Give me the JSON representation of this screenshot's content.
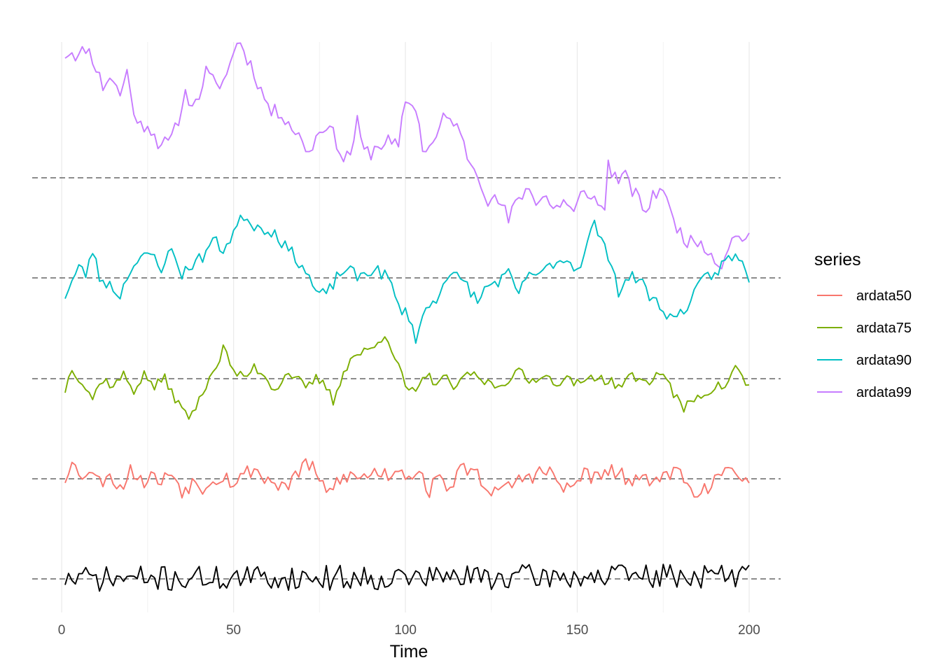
{
  "chart_data": {
    "type": "line",
    "title": "",
    "xlabel": "Time",
    "ylabel": "",
    "xlim": [
      1,
      200
    ],
    "x_ticks": [
      0,
      50,
      100,
      150,
      200
    ],
    "x_tick_labels": [
      "0",
      "50",
      "100",
      "150",
      "200"
    ],
    "grid": "vertical only",
    "legend": {
      "title": "series",
      "placement": "right",
      "entries": [
        "ardata50",
        "ardata75",
        "ardata90",
        "ardata99"
      ]
    },
    "baseline_style": "dashed grey",
    "series": [
      {
        "name": "ardata99",
        "color": "#C77CFF",
        "baseline": 0,
        "anchors": [
          [
            1,
            3.4
          ],
          [
            3,
            3.5
          ],
          [
            5,
            3.3
          ],
          [
            7,
            3.6
          ],
          [
            9,
            3.3
          ],
          [
            12,
            2.5
          ],
          [
            14,
            2.8
          ],
          [
            17,
            2.3
          ],
          [
            19,
            2.9
          ],
          [
            22,
            1.4
          ],
          [
            25,
            1.5
          ],
          [
            28,
            1.0
          ],
          [
            31,
            0.9
          ],
          [
            33,
            1.3
          ],
          [
            36,
            2.3
          ],
          [
            39,
            2.0
          ],
          [
            42,
            2.9
          ],
          [
            45,
            2.5
          ],
          [
            48,
            2.8
          ],
          [
            51,
            3.8
          ],
          [
            53,
            3.5
          ],
          [
            56,
            2.9
          ],
          [
            58,
            2.4
          ],
          [
            61,
            1.8
          ],
          [
            64,
            1.8
          ],
          [
            67,
            1.4
          ],
          [
            70,
            1.0
          ],
          [
            72,
            0.7
          ],
          [
            75,
            1.3
          ],
          [
            77,
            1.5
          ],
          [
            80,
            1.0
          ],
          [
            82,
            0.5
          ],
          [
            84,
            0.7
          ],
          [
            86,
            1.5
          ],
          [
            88,
            0.7
          ],
          [
            90,
            0.7
          ],
          [
            92,
            0.9
          ],
          [
            95,
            1.0
          ],
          [
            98,
            0.8
          ],
          [
            100,
            2.2
          ],
          [
            101,
            2.0
          ],
          [
            103,
            2.0
          ],
          [
            105,
            0.8
          ],
          [
            108,
            0.9
          ],
          [
            111,
            1.6
          ],
          [
            114,
            1.6
          ],
          [
            117,
            0.9
          ],
          [
            119,
            0.4
          ],
          [
            121,
            0.2
          ],
          [
            124,
            -0.6
          ],
          [
            128,
            -0.7
          ],
          [
            130,
            -1.2
          ],
          [
            133,
            -0.5
          ],
          [
            136,
            -0.3
          ],
          [
            138,
            -0.6
          ],
          [
            141,
            -0.5
          ],
          [
            143,
            -0.9
          ],
          [
            146,
            -0.6
          ],
          [
            149,
            -1.0
          ],
          [
            151,
            -0.5
          ],
          [
            154,
            -0.4
          ],
          [
            156,
            -0.8
          ],
          [
            158,
            -0.8
          ],
          [
            159,
            0.4
          ],
          [
            161,
            0.0
          ],
          [
            164,
            0.0
          ],
          [
            167,
            -0.5
          ],
          [
            170,
            -0.9
          ],
          [
            173,
            -0.4
          ],
          [
            175,
            -0.2
          ],
          [
            177,
            -1.0
          ],
          [
            180,
            -1.5
          ],
          [
            183,
            -1.8
          ],
          [
            186,
            -1.7
          ],
          [
            189,
            -2.1
          ],
          [
            192,
            -2.4
          ],
          [
            194,
            -1.8
          ],
          [
            197,
            -1.6
          ],
          [
            200,
            -1.6
          ]
        ],
        "noise": 0.22,
        "seed": 11
      },
      {
        "name": "ardata90",
        "color": "#00BFC4",
        "baseline": 0,
        "anchors": [
          [
            1,
            -0.5
          ],
          [
            3,
            -0.1
          ],
          [
            5,
            0.3
          ],
          [
            7,
            0.1
          ],
          [
            9,
            0.8
          ],
          [
            11,
            0.0
          ],
          [
            14,
            -0.2
          ],
          [
            17,
            -0.5
          ],
          [
            20,
            0.3
          ],
          [
            23,
            0.5
          ],
          [
            26,
            0.7
          ],
          [
            29,
            0.3
          ],
          [
            32,
            0.8
          ],
          [
            35,
            0.1
          ],
          [
            38,
            0.4
          ],
          [
            41,
            0.6
          ],
          [
            44,
            1.1
          ],
          [
            47,
            0.8
          ],
          [
            50,
            1.3
          ],
          [
            53,
            1.8
          ],
          [
            56,
            1.5
          ],
          [
            59,
            1.4
          ],
          [
            62,
            1.3
          ],
          [
            65,
            0.9
          ],
          [
            68,
            0.6
          ],
          [
            71,
            0.2
          ],
          [
            74,
            -0.4
          ],
          [
            77,
            -0.5
          ],
          [
            80,
            0.0
          ],
          [
            83,
            0.3
          ],
          [
            86,
            0.0
          ],
          [
            89,
            0.2
          ],
          [
            92,
            0.2
          ],
          [
            95,
            0.0
          ],
          [
            98,
            -0.8
          ],
          [
            101,
            -1.1
          ],
          [
            103,
            -1.7
          ],
          [
            106,
            -0.9
          ],
          [
            109,
            -0.6
          ],
          [
            112,
            0.1
          ],
          [
            115,
            0.0
          ],
          [
            118,
            -0.2
          ],
          [
            121,
            -0.7
          ],
          [
            124,
            -0.2
          ],
          [
            127,
            -0.1
          ],
          [
            130,
            0.1
          ],
          [
            133,
            -0.5
          ],
          [
            136,
            0.2
          ],
          [
            139,
            0.0
          ],
          [
            142,
            0.4
          ],
          [
            145,
            0.5
          ],
          [
            148,
            0.5
          ],
          [
            150,
            0.2
          ],
          [
            153,
            1.0
          ],
          [
            155,
            1.6
          ],
          [
            157,
            1.0
          ],
          [
            160,
            0.5
          ],
          [
            162,
            -0.4
          ],
          [
            165,
            0.0
          ],
          [
            168,
            0.0
          ],
          [
            171,
            -0.5
          ],
          [
            174,
            -0.8
          ],
          [
            176,
            -1.0
          ],
          [
            178,
            -1.2
          ],
          [
            181,
            -0.9
          ],
          [
            184,
            -0.5
          ],
          [
            187,
            0.0
          ],
          [
            190,
            0.1
          ],
          [
            193,
            0.5
          ],
          [
            196,
            0.6
          ],
          [
            199,
            0.3
          ],
          [
            200,
            0.0
          ]
        ],
        "noise": 0.18,
        "seed": 23
      },
      {
        "name": "ardata75",
        "color": "#7CAE00",
        "baseline": 0,
        "anchors": [
          [
            1,
            -0.3
          ],
          [
            3,
            0.3
          ],
          [
            6,
            -0.1
          ],
          [
            9,
            -0.5
          ],
          [
            12,
            0.0
          ],
          [
            15,
            -0.2
          ],
          [
            18,
            0.1
          ],
          [
            21,
            -0.3
          ],
          [
            24,
            0.1
          ],
          [
            27,
            -0.2
          ],
          [
            30,
            0.0
          ],
          [
            33,
            -0.5
          ],
          [
            35,
            -0.8
          ],
          [
            37,
            -1.0
          ],
          [
            40,
            -0.6
          ],
          [
            43,
            0.1
          ],
          [
            45,
            0.3
          ],
          [
            47,
            0.8
          ],
          [
            50,
            0.2
          ],
          [
            53,
            0.0
          ],
          [
            56,
            0.3
          ],
          [
            59,
            0.1
          ],
          [
            62,
            -0.3
          ],
          [
            65,
            0.1
          ],
          [
            68,
            0.1
          ],
          [
            71,
            -0.3
          ],
          [
            74,
            0.0
          ],
          [
            77,
            -0.2
          ],
          [
            79,
            -0.6
          ],
          [
            82,
            0.2
          ],
          [
            85,
            0.6
          ],
          [
            88,
            0.7
          ],
          [
            91,
            0.8
          ],
          [
            94,
            1.2
          ],
          [
            96,
            0.8
          ],
          [
            98,
            0.3
          ],
          [
            100,
            -0.2
          ],
          [
            103,
            -0.4
          ],
          [
            106,
            0.1
          ],
          [
            109,
            -0.1
          ],
          [
            112,
            0.0
          ],
          [
            115,
            -0.3
          ],
          [
            118,
            0.2
          ],
          [
            121,
            0.0
          ],
          [
            124,
            -0.1
          ],
          [
            127,
            -0.2
          ],
          [
            130,
            0.0
          ],
          [
            133,
            0.2
          ],
          [
            136,
            -0.1
          ],
          [
            139,
            0.1
          ],
          [
            142,
            0.0
          ],
          [
            145,
            -0.1
          ],
          [
            148,
            0.0
          ],
          [
            151,
            -0.2
          ],
          [
            154,
            0.1
          ],
          [
            157,
            0.0
          ],
          [
            160,
            -0.1
          ],
          [
            163,
            -0.2
          ],
          [
            166,
            0.1
          ],
          [
            169,
            -0.1
          ],
          [
            172,
            0.0
          ],
          [
            175,
            0.2
          ],
          [
            178,
            -0.4
          ],
          [
            181,
            -0.8
          ],
          [
            184,
            -0.5
          ],
          [
            187,
            -0.4
          ],
          [
            190,
            -0.2
          ],
          [
            193,
            -0.2
          ],
          [
            196,
            0.3
          ],
          [
            199,
            -0.1
          ],
          [
            200,
            -0.2
          ]
        ],
        "noise": 0.13,
        "seed": 37
      },
      {
        "name": "ardata50",
        "color": "#F8766D",
        "baseline": 0,
        "anchors": [
          [
            1,
            0.0
          ],
          [
            3,
            0.6
          ],
          [
            5,
            0.0
          ],
          [
            8,
            0.3
          ],
          [
            11,
            -0.1
          ],
          [
            14,
            0.2
          ],
          [
            17,
            -0.3
          ],
          [
            20,
            0.3
          ],
          [
            23,
            -0.1
          ],
          [
            26,
            0.1
          ],
          [
            29,
            -0.1
          ],
          [
            32,
            0.2
          ],
          [
            35,
            -0.3
          ],
          [
            38,
            -0.1
          ],
          [
            41,
            -0.2
          ],
          [
            44,
            0.0
          ],
          [
            47,
            0.1
          ],
          [
            50,
            -0.1
          ],
          [
            53,
            0.1
          ],
          [
            56,
            0.3
          ],
          [
            59,
            0.0
          ],
          [
            62,
            -0.1
          ],
          [
            65,
            -0.2
          ],
          [
            68,
            0.0
          ],
          [
            71,
            0.5
          ],
          [
            74,
            0.1
          ],
          [
            77,
            -0.4
          ],
          [
            80,
            -0.1
          ],
          [
            83,
            0.1
          ],
          [
            86,
            0.0
          ],
          [
            89,
            0.1
          ],
          [
            92,
            0.2
          ],
          [
            95,
            0.1
          ],
          [
            98,
            0.3
          ],
          [
            101,
            0.1
          ],
          [
            104,
            0.2
          ],
          [
            107,
            -0.3
          ],
          [
            110,
            0.0
          ],
          [
            113,
            -0.2
          ],
          [
            116,
            0.2
          ],
          [
            119,
            0.3
          ],
          [
            122,
            0.0
          ],
          [
            125,
            -0.3
          ],
          [
            128,
            -0.4
          ],
          [
            131,
            -0.1
          ],
          [
            134,
            0.0
          ],
          [
            137,
            0.1
          ],
          [
            140,
            0.2
          ],
          [
            143,
            0.1
          ],
          [
            146,
            -0.3
          ],
          [
            149,
            -0.2
          ],
          [
            152,
            0.2
          ],
          [
            155,
            0.0
          ],
          [
            158,
            0.1
          ],
          [
            161,
            0.2
          ],
          [
            164,
            0.0
          ],
          [
            167,
            -0.1
          ],
          [
            170,
            -0.1
          ],
          [
            173,
            0.2
          ],
          [
            176,
            0.0
          ],
          [
            179,
            0.3
          ],
          [
            182,
            -0.2
          ],
          [
            185,
            -0.3
          ],
          [
            188,
            -0.2
          ],
          [
            191,
            0.0
          ],
          [
            194,
            0.1
          ],
          [
            197,
            0.2
          ],
          [
            200,
            0.0
          ]
        ],
        "noise": 0.22,
        "seed": 53
      },
      {
        "name": "",
        "color": "#000000",
        "baseline": 0,
        "anchors": [
          [
            1,
            0.0
          ],
          [
            200,
            0.1
          ]
        ],
        "noise": 0.4,
        "seed": 71
      }
    ]
  },
  "legend_items": [
    {
      "label": "ardata50",
      "color": "#F8766D"
    },
    {
      "label": "ardata75",
      "color": "#7CAE00"
    },
    {
      "label": "ardata90",
      "color": "#00BFC4"
    },
    {
      "label": "ardata99",
      "color": "#C77CFF"
    }
  ]
}
